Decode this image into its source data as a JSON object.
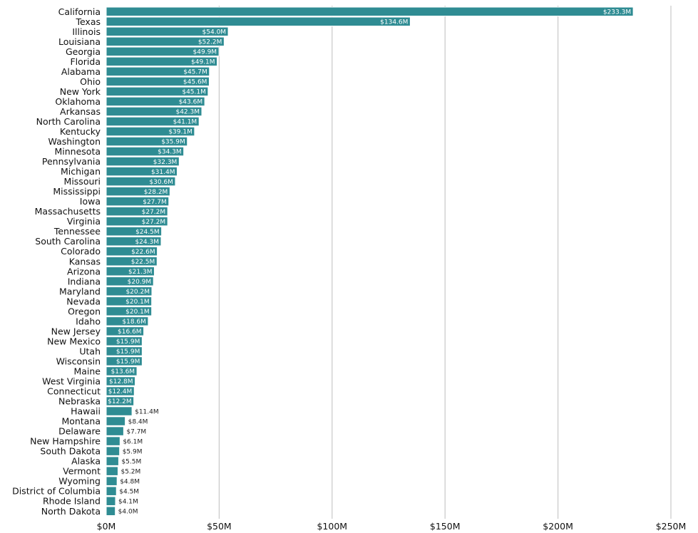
{
  "chart_data": {
    "type": "bar",
    "orientation": "horizontal",
    "title": "",
    "xlabel": "",
    "ylabel": "",
    "xlim": [
      0,
      250
    ],
    "x_ticks": [
      "$0M",
      "$50M",
      "$100M",
      "$150M",
      "$200M",
      "$250M"
    ],
    "grid": "vertical",
    "bar_color": "#2f8c93",
    "categories": [
      "California",
      "Texas",
      "Illinois",
      "Louisiana",
      "Georgia",
      "Florida",
      "Alabama",
      "Ohio",
      "New York",
      "Oklahoma",
      "Arkansas",
      "North Carolina",
      "Kentucky",
      "Washington",
      "Minnesota",
      "Pennsylvania",
      "Michigan",
      "Missouri",
      "Mississippi",
      "Iowa",
      "Massachusetts",
      "Virginia",
      "Tennessee",
      "South Carolina",
      "Colorado",
      "Kansas",
      "Arizona",
      "Indiana",
      "Maryland",
      "Nevada",
      "Oregon",
      "Idaho",
      "New Jersey",
      "New Mexico",
      "Utah",
      "Wisconsin",
      "Maine",
      "West Virginia",
      "Connecticut",
      "Nebraska",
      "Hawaii",
      "Montana",
      "Delaware",
      "New Hampshire",
      "South Dakota",
      "Alaska",
      "Vermont",
      "Wyoming",
      "District of Columbia",
      "Rhode Island",
      "North Dakota"
    ],
    "values": [
      233.3,
      134.6,
      54.0,
      52.2,
      49.9,
      49.1,
      45.7,
      45.6,
      45.1,
      43.6,
      42.3,
      41.1,
      39.1,
      35.9,
      34.3,
      32.3,
      31.4,
      30.6,
      28.2,
      27.7,
      27.2,
      27.2,
      24.5,
      24.3,
      22.6,
      22.5,
      21.3,
      20.9,
      20.2,
      20.1,
      20.1,
      18.6,
      16.6,
      15.9,
      15.9,
      15.9,
      13.6,
      12.8,
      12.4,
      12.2,
      11.4,
      8.4,
      7.7,
      6.1,
      5.9,
      5.5,
      5.2,
      4.8,
      4.5,
      4.1,
      4.0
    ],
    "labels": [
      "$233.3M",
      "$134.6M",
      "$54.0M",
      "$52.2M",
      "$49.9M",
      "$49.1M",
      "$45.7M",
      "$45.6M",
      "$45.1M",
      "$43.6M",
      "$42.3M",
      "$41.1M",
      "$39.1M",
      "$35.9M",
      "$34.3M",
      "$32.3M",
      "$31.4M",
      "$30.6M",
      "$28.2M",
      "$27.7M",
      "$27.2M",
      "$27.2M",
      "$24.5M",
      "$24.3M",
      "$22.6M",
      "$22.5M",
      "$21.3M",
      "$20.9M",
      "$20.2M",
      "$20.1M",
      "$20.1M",
      "$18.6M",
      "$16.6M",
      "$15.9M",
      "$15.9M",
      "$15.9M",
      "$13.6M",
      "$12.8M",
      "$12.4M",
      "$12.2M",
      "$11.4M",
      "$8.4M",
      "$7.7M",
      "$6.1M",
      "$5.9M",
      "$5.5M",
      "$5.2M",
      "$4.8M",
      "$4.5M",
      "$4.1M",
      "$4.0M"
    ]
  }
}
